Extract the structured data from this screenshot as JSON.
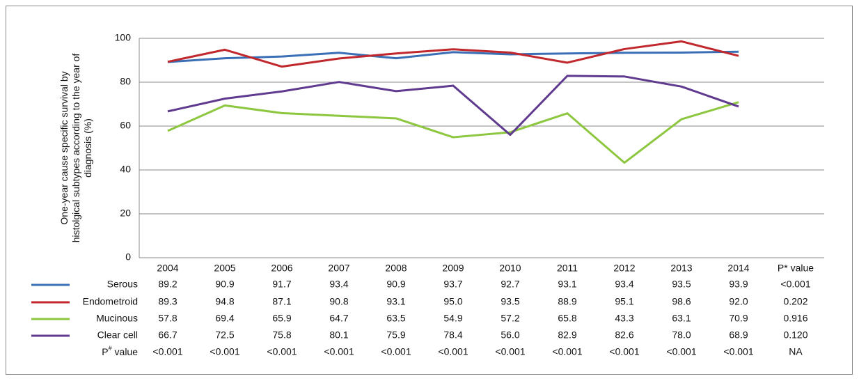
{
  "chart_data": {
    "type": "line",
    "ylabel_lines": [
      "One-year cause specific survival by",
      "histolgical subtypes according to the year of",
      "diagnosis (%)"
    ],
    "categories": [
      "2004",
      "2005",
      "2006",
      "2007",
      "2008",
      "2009",
      "2010",
      "2011",
      "2012",
      "2013",
      "2014"
    ],
    "p_star_header": "P* value",
    "ylim": [
      0,
      100
    ],
    "yticks": [
      0,
      20,
      40,
      60,
      80,
      100
    ],
    "grid": true,
    "series": [
      {
        "name": "Serous",
        "color": "#3a6fb5",
        "values": [
          89.2,
          90.9,
          91.7,
          93.4,
          90.9,
          93.7,
          92.7,
          93.1,
          93.4,
          93.5,
          93.9
        ],
        "value_labels": [
          "89.2",
          "90.9",
          "91.7",
          "93.4",
          "90.9",
          "93.7",
          "92.7",
          "93.1",
          "93.4",
          "93.5",
          "93.9"
        ],
        "p_star": "<0.001"
      },
      {
        "name": "Endometroid",
        "color": "#c0282d",
        "values": [
          89.3,
          94.8,
          87.1,
          90.8,
          93.1,
          95.0,
          93.5,
          88.9,
          95.1,
          98.6,
          92.0
        ],
        "value_labels": [
          "89.3",
          "94.8",
          "87.1",
          "90.8",
          "93.1",
          "95.0",
          "93.5",
          "88.9",
          "95.1",
          "98.6",
          "92.0"
        ],
        "p_star": "0.202"
      },
      {
        "name": "Mucinous",
        "color": "#8dc63f",
        "values": [
          57.8,
          69.4,
          65.9,
          64.7,
          63.5,
          54.9,
          57.2,
          65.8,
          43.3,
          63.1,
          70.9
        ],
        "value_labels": [
          "57.8",
          "69.4",
          "65.9",
          "64.7",
          "63.5",
          "54.9",
          "57.2",
          "65.8",
          "43.3",
          "63.1",
          "70.9"
        ],
        "p_star": "0.916"
      },
      {
        "name": "Clear cell",
        "color": "#5f3a8f",
        "values": [
          66.7,
          72.5,
          75.8,
          80.1,
          75.9,
          78.4,
          56.0,
          82.9,
          82.6,
          78.0,
          68.9
        ],
        "value_labels": [
          "66.7",
          "72.5",
          "75.8",
          "80.1",
          "75.9",
          "78.4",
          "56.0",
          "82.9",
          "82.6",
          "78.0",
          "68.9"
        ],
        "p_star": "0.120"
      }
    ],
    "p_hash": {
      "label_main": "P",
      "label_sup": "#",
      "label_rest": " value",
      "values": [
        "<0.001",
        "<0.001",
        "<0.001",
        "<0.001",
        "<0.001",
        "<0.001",
        "<0.001",
        "<0.001",
        "<0.001",
        "<0.001",
        "<0.001"
      ],
      "p_star": "NA"
    }
  }
}
